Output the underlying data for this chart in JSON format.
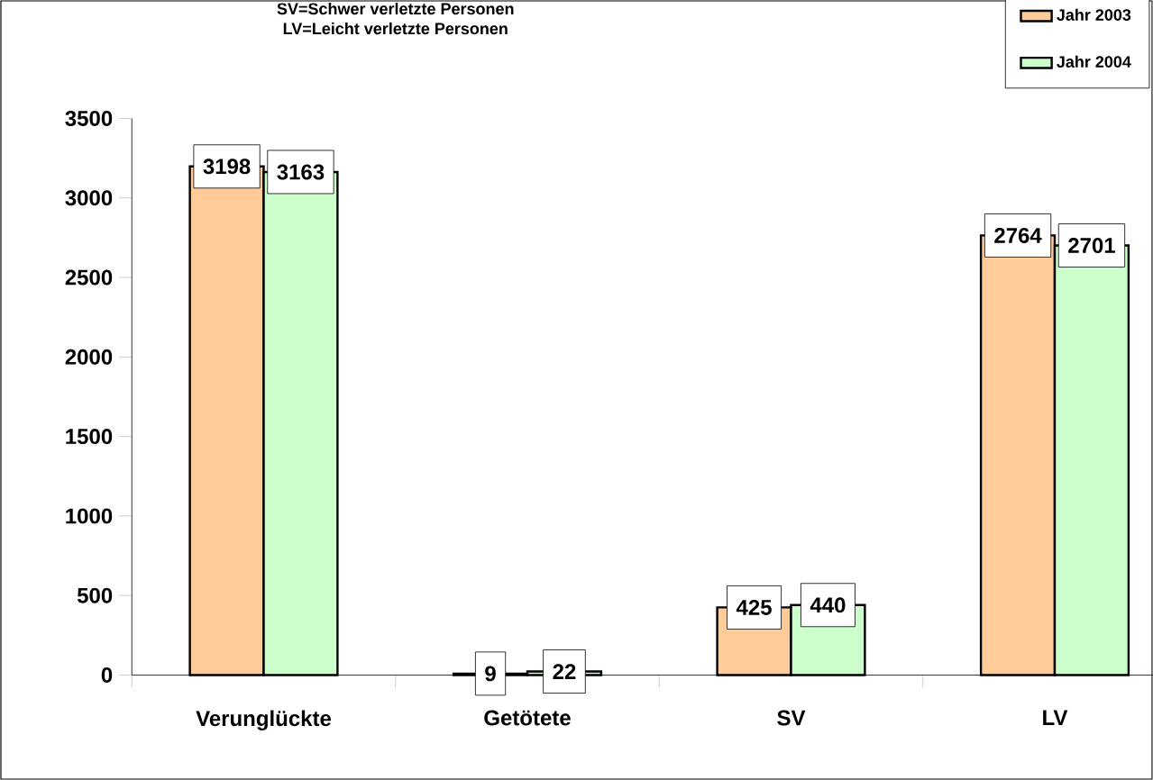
{
  "chart_data": {
    "type": "bar",
    "title": "SV=Schwer verletzte Personen",
    "subtitle": "LV=Leicht verletzte Personen",
    "categories": [
      "Verunglückte",
      "Getötete",
      "SV",
      "LV"
    ],
    "series": [
      {
        "name": "Jahr  2003",
        "color": "#ffcc99",
        "values": [
          3198,
          9,
          425,
          2764
        ]
      },
      {
        "name": "Jahr  2004",
        "color": "#ccffcc",
        "values": [
          3163,
          22,
          440,
          2701
        ]
      }
    ],
    "ylim": [
      0,
      3500
    ],
    "yticks": [
      0,
      500,
      1000,
      1500,
      2000,
      2500,
      3000,
      3500
    ],
    "data_labels": true,
    "legend": "top right",
    "grid": false
  }
}
